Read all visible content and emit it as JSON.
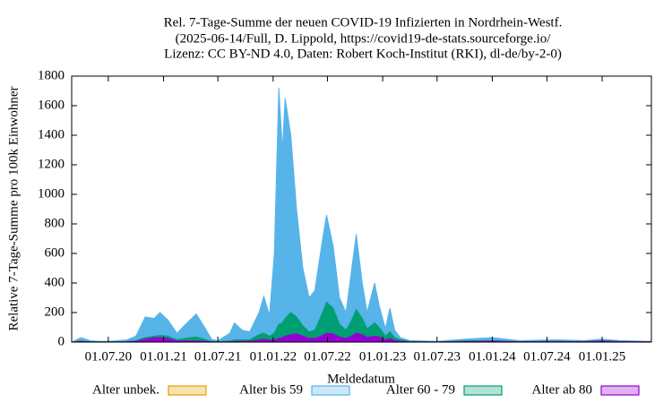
{
  "chart_data": {
    "type": "area",
    "title": [
      "Rel. 7-Tage-Summe der neuen COVID-19 Infizierten in Nordrhein-Westf.",
      "(2025-06-14/Full, D. Lippold, https://covid19-de-stats.sourceforge.io/",
      "Lizenz: CC BY-ND 4.0, Daten: Robert Koch-Institut (RKI), dl-de/by-2-0)"
    ],
    "x_label": "Meldedatum",
    "y_label": "Relative 7-Tage-Summe pro 100k Einwohner",
    "x": [
      "2020-03-01",
      "2020-04-01",
      "2020-05-01",
      "2020-06-01",
      "2020-07-01",
      "2020-08-01",
      "2020-09-01",
      "2020-10-01",
      "2020-11-01",
      "2020-12-01",
      "2020-12-20",
      "2021-01-15",
      "2021-02-15",
      "2021-03-15",
      "2021-04-20",
      "2021-05-15",
      "2021-06-10",
      "2021-07-01",
      "2021-08-10",
      "2021-08-25",
      "2021-09-20",
      "2021-10-15",
      "2021-11-15",
      "2021-12-01",
      "2021-12-20",
      "2022-01-05",
      "2022-01-20",
      "2022-02-01",
      "2022-02-10",
      "2022-03-01",
      "2022-03-20",
      "2022-04-10",
      "2022-05-01",
      "2022-05-20",
      "2022-06-15",
      "2022-06-28",
      "2022-07-20",
      "2022-08-10",
      "2022-09-01",
      "2022-09-20",
      "2022-10-05",
      "2022-10-25",
      "2022-11-10",
      "2022-12-05",
      "2022-12-20",
      "2023-01-10",
      "2023-01-25",
      "2023-02-10",
      "2023-03-01",
      "2023-04-01",
      "2023-07-01",
      "2023-10-01",
      "2024-01-01",
      "2024-04-01",
      "2024-08-01",
      "2024-11-01",
      "2025-01-01",
      "2025-03-01",
      "2025-06-01",
      "2025-06-14"
    ],
    "series": [
      {
        "name": "Alter unbek.",
        "color": "#e69f00",
        "values": [
          0,
          0,
          0,
          0,
          0,
          0,
          0,
          0,
          0,
          0,
          0,
          0,
          0,
          0,
          0,
          0,
          0,
          0,
          0,
          0,
          0,
          0,
          0,
          0,
          0,
          0,
          0,
          0,
          0,
          0,
          0,
          0,
          0,
          0,
          0,
          0,
          0,
          0,
          0,
          0,
          0,
          0,
          0,
          0,
          0,
          0,
          0,
          0,
          0,
          0,
          0,
          0,
          0,
          0,
          0,
          0,
          0,
          0,
          0,
          0
        ]
      },
      {
        "name": "Alter bis 59",
        "color": "#56b4e9",
        "values": [
          0,
          30,
          10,
          5,
          5,
          10,
          15,
          40,
          170,
          160,
          200,
          150,
          60,
          120,
          190,
          110,
          20,
          10,
          60,
          130,
          80,
          70,
          200,
          310,
          180,
          600,
          1720,
          1300,
          1650,
          1400,
          900,
          500,
          300,
          350,
          700,
          860,
          650,
          300,
          200,
          500,
          730,
          400,
          200,
          400,
          250,
          90,
          230,
          80,
          30,
          10,
          5,
          20,
          30,
          10,
          15,
          10,
          20,
          10,
          5,
          5
        ]
      },
      {
        "name": "Alter 60 - 79",
        "color": "#009e73",
        "values": [
          0,
          8,
          3,
          2,
          2,
          3,
          4,
          10,
          30,
          40,
          45,
          40,
          15,
          25,
          35,
          20,
          5,
          3,
          8,
          15,
          15,
          15,
          50,
          60,
          40,
          60,
          120,
          130,
          160,
          200,
          170,
          110,
          70,
          80,
          200,
          270,
          230,
          120,
          80,
          150,
          220,
          160,
          90,
          130,
          100,
          40,
          70,
          30,
          15,
          5,
          2,
          8,
          10,
          4,
          6,
          5,
          10,
          5,
          3,
          3
        ]
      },
      {
        "name": "Alter ab 80",
        "color": "#9400d3",
        "values": [
          0,
          4,
          2,
          1,
          1,
          1,
          2,
          5,
          20,
          30,
          30,
          25,
          8,
          8,
          8,
          5,
          2,
          1,
          2,
          4,
          5,
          6,
          15,
          20,
          12,
          15,
          25,
          30,
          40,
          50,
          55,
          40,
          25,
          25,
          45,
          60,
          55,
          35,
          25,
          40,
          60,
          50,
          30,
          40,
          35,
          15,
          25,
          10,
          5,
          2,
          1,
          4,
          6,
          2,
          3,
          3,
          6,
          3,
          2,
          2
        ]
      }
    ],
    "xlim": [
      "2020-03-01",
      "2025-06-14"
    ],
    "xticks": [
      {
        "value": "2020-07-01",
        "label": "01.07.20"
      },
      {
        "value": "2021-01-01",
        "label": "01.01.21"
      },
      {
        "value": "2021-07-01",
        "label": "01.07.21"
      },
      {
        "value": "2022-01-01",
        "label": "01.01.22"
      },
      {
        "value": "2022-07-01",
        "label": "01.07.22"
      },
      {
        "value": "2023-01-01",
        "label": "01.01.23"
      },
      {
        "value": "2023-07-01",
        "label": "01.07.23"
      },
      {
        "value": "2024-01-01",
        "label": "01.01.24"
      },
      {
        "value": "2024-07-01",
        "label": "01.07.24"
      },
      {
        "value": "2025-01-01",
        "label": "01.01.25"
      }
    ],
    "ylim": [
      0,
      1800
    ],
    "yticks": [
      0,
      200,
      400,
      600,
      800,
      1000,
      1200,
      1400,
      1600,
      1800
    ],
    "grid": false,
    "legend": "bottom"
  }
}
